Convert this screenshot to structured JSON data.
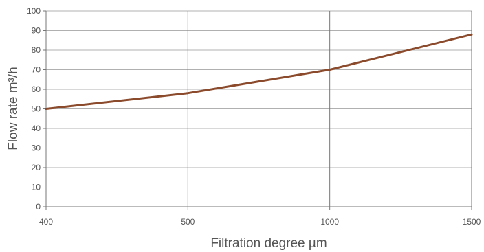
{
  "chart_data": {
    "type": "line",
    "title": "",
    "xlabel": "Filtration degree µm",
    "ylabel": "Flow rate m³/h",
    "x_categories": [
      "400",
      "500",
      "1000",
      "1500"
    ],
    "ylim": [
      0,
      100
    ],
    "y_ticks": [
      "0",
      "10",
      "20",
      "30",
      "40",
      "50",
      "60",
      "70",
      "80",
      "90",
      "100"
    ],
    "grid": true,
    "series": [
      {
        "x": [
          "400",
          "500",
          "1000",
          "1500"
        ],
        "values": [
          50,
          58,
          70,
          88
        ],
        "color": "#8B4A2B"
      }
    ],
    "grid_color": "#b0b0b0",
    "major_x_grid_color": "#777777"
  }
}
